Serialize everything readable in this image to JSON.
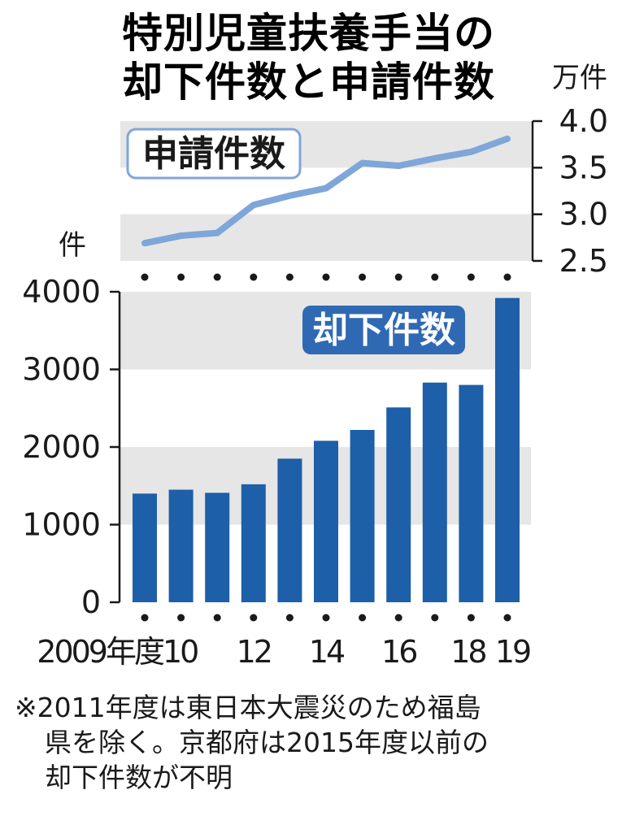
{
  "title": {
    "line1": "特別児童扶養手当の",
    "line2": "却下件数と申請件数"
  },
  "chart_data": [
    {
      "type": "line",
      "title": "申請件数",
      "ylabel": "万件",
      "ylim": [
        2.5,
        4.0
      ],
      "yticks": [
        "4.0",
        "3.5",
        "3.0",
        "2.5"
      ],
      "x": [
        2009,
        2010,
        2011,
        2012,
        2013,
        2014,
        2015,
        2016,
        2017,
        2018,
        2019
      ],
      "values": [
        2.69,
        2.77,
        2.8,
        3.1,
        3.2,
        3.28,
        3.55,
        3.52,
        3.6,
        3.67,
        3.81
      ],
      "color": "#7ea6d8",
      "grid": true
    },
    {
      "type": "bar",
      "title": "却下件数",
      "ylabel": "件",
      "ylim": [
        0,
        4000
      ],
      "yticks": [
        "4000",
        "3000",
        "2000",
        "1000",
        "0"
      ],
      "categories": [
        "2009",
        "2010",
        "2011",
        "2012",
        "2013",
        "2014",
        "2015",
        "2016",
        "2017",
        "2018",
        "2019"
      ],
      "values": [
        1400,
        1450,
        1410,
        1520,
        1850,
        2080,
        2220,
        2510,
        2830,
        2800,
        3920
      ],
      "color": "#1d5fa8",
      "grid": true
    }
  ],
  "xaxis_labels": {
    "2009": "2009年度",
    "2010": "10",
    "2012": "12",
    "2014": "14",
    "2016": "16",
    "2018": "18",
    "2019": "19"
  },
  "note": {
    "line1": "※2011年度は東日本大震災のため福島",
    "line2": "県を除く。京都府は2015年度以前の",
    "line3": "却下件数が不明"
  }
}
